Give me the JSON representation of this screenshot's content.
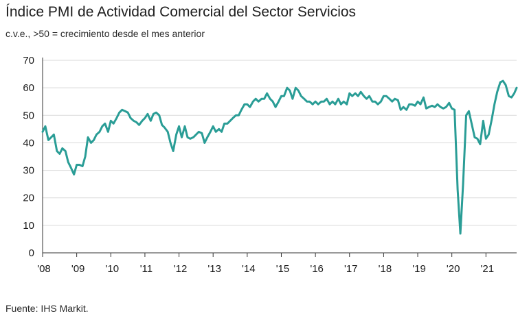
{
  "chart_data": {
    "type": "line",
    "title": "Índice PMI de Actividad Comercial del Sector Servicios",
    "subtitle": "c.v.e., >50 = crecimiento desde el mes anterior",
    "source": "Fuente: IHS Markit.",
    "xlabel": "",
    "ylabel": "",
    "ylim": [
      0,
      70
    ],
    "yticks": [
      0,
      10,
      20,
      30,
      40,
      50,
      60,
      70
    ],
    "xlim": [
      2008.0,
      2021.9
    ],
    "xticks": [
      2008,
      2009,
      2010,
      2011,
      2012,
      2013,
      2014,
      2015,
      2016,
      2017,
      2018,
      2019,
      2020,
      2021
    ],
    "xtick_labels": [
      "'08",
      "'09",
      "'10",
      "'11",
      "'12",
      "'13",
      "'14",
      "'15",
      "'16",
      "'17",
      "'18",
      "'19",
      "'20",
      "'21"
    ],
    "grid": "horizontal",
    "line_color": "#2a9d96",
    "series": [
      {
        "points": [
          [
            2008.0,
            44
          ],
          [
            2008.08,
            46
          ],
          [
            2008.17,
            41
          ],
          [
            2008.25,
            42
          ],
          [
            2008.33,
            43
          ],
          [
            2008.42,
            37
          ],
          [
            2008.5,
            36
          ],
          [
            2008.58,
            38
          ],
          [
            2008.67,
            37
          ],
          [
            2008.75,
            33
          ],
          [
            2008.83,
            31
          ],
          [
            2008.92,
            28.5
          ],
          [
            2009.0,
            32
          ],
          [
            2009.08,
            32
          ],
          [
            2009.17,
            31.5
          ],
          [
            2009.25,
            35
          ],
          [
            2009.33,
            42
          ],
          [
            2009.42,
            40
          ],
          [
            2009.5,
            41
          ],
          [
            2009.58,
            43
          ],
          [
            2009.67,
            44
          ],
          [
            2009.75,
            46
          ],
          [
            2009.83,
            47
          ],
          [
            2009.92,
            44
          ],
          [
            2010.0,
            48
          ],
          [
            2010.08,
            47
          ],
          [
            2010.17,
            49
          ],
          [
            2010.25,
            51
          ],
          [
            2010.33,
            52
          ],
          [
            2010.42,
            51.5
          ],
          [
            2010.5,
            51
          ],
          [
            2010.58,
            49
          ],
          [
            2010.67,
            48
          ],
          [
            2010.75,
            47.5
          ],
          [
            2010.83,
            46.5
          ],
          [
            2010.92,
            48
          ],
          [
            2011.0,
            49
          ],
          [
            2011.08,
            50.5
          ],
          [
            2011.17,
            48
          ],
          [
            2011.25,
            50.5
          ],
          [
            2011.33,
            51
          ],
          [
            2011.42,
            50
          ],
          [
            2011.5,
            46.5
          ],
          [
            2011.58,
            45.5
          ],
          [
            2011.67,
            44
          ],
          [
            2011.75,
            40
          ],
          [
            2011.83,
            37
          ],
          [
            2011.92,
            43
          ],
          [
            2012.0,
            46
          ],
          [
            2012.08,
            42
          ],
          [
            2012.17,
            46
          ],
          [
            2012.25,
            42
          ],
          [
            2012.33,
            41.5
          ],
          [
            2012.42,
            42
          ],
          [
            2012.5,
            43
          ],
          [
            2012.58,
            44
          ],
          [
            2012.67,
            43.5
          ],
          [
            2012.75,
            40
          ],
          [
            2012.83,
            42
          ],
          [
            2012.92,
            44
          ],
          [
            2013.0,
            46
          ],
          [
            2013.08,
            44
          ],
          [
            2013.17,
            45
          ],
          [
            2013.25,
            44
          ],
          [
            2013.33,
            47
          ],
          [
            2013.42,
            47
          ],
          [
            2013.5,
            48
          ],
          [
            2013.58,
            49
          ],
          [
            2013.67,
            50
          ],
          [
            2013.75,
            50
          ],
          [
            2013.83,
            52
          ],
          [
            2013.92,
            54
          ],
          [
            2014.0,
            54
          ],
          [
            2014.08,
            53
          ],
          [
            2014.17,
            55
          ],
          [
            2014.25,
            56
          ],
          [
            2014.33,
            55
          ],
          [
            2014.42,
            56
          ],
          [
            2014.5,
            56
          ],
          [
            2014.58,
            58
          ],
          [
            2014.67,
            56
          ],
          [
            2014.75,
            55
          ],
          [
            2014.83,
            53
          ],
          [
            2014.92,
            55
          ],
          [
            2015.0,
            57
          ],
          [
            2015.08,
            57
          ],
          [
            2015.17,
            60
          ],
          [
            2015.25,
            59
          ],
          [
            2015.33,
            56
          ],
          [
            2015.42,
            60
          ],
          [
            2015.5,
            59
          ],
          [
            2015.58,
            57
          ],
          [
            2015.67,
            56
          ],
          [
            2015.75,
            55
          ],
          [
            2015.83,
            55
          ],
          [
            2015.92,
            54
          ],
          [
            2016.0,
            55
          ],
          [
            2016.08,
            54
          ],
          [
            2016.17,
            55
          ],
          [
            2016.25,
            55
          ],
          [
            2016.33,
            56
          ],
          [
            2016.42,
            54
          ],
          [
            2016.5,
            55
          ],
          [
            2016.58,
            54
          ],
          [
            2016.67,
            56
          ],
          [
            2016.75,
            54
          ],
          [
            2016.83,
            55
          ],
          [
            2016.92,
            54
          ],
          [
            2017.0,
            58
          ],
          [
            2017.08,
            57
          ],
          [
            2017.17,
            58
          ],
          [
            2017.25,
            57
          ],
          [
            2017.33,
            58.5
          ],
          [
            2017.42,
            57
          ],
          [
            2017.5,
            56
          ],
          [
            2017.58,
            57
          ],
          [
            2017.67,
            55
          ],
          [
            2017.75,
            55
          ],
          [
            2017.83,
            54
          ],
          [
            2017.92,
            55
          ],
          [
            2018.0,
            57
          ],
          [
            2018.08,
            57
          ],
          [
            2018.17,
            56
          ],
          [
            2018.25,
            55
          ],
          [
            2018.33,
            56
          ],
          [
            2018.42,
            55.5
          ],
          [
            2018.5,
            52
          ],
          [
            2018.58,
            53
          ],
          [
            2018.67,
            52
          ],
          [
            2018.75,
            54
          ],
          [
            2018.83,
            54
          ],
          [
            2018.92,
            53.5
          ],
          [
            2019.0,
            55
          ],
          [
            2019.08,
            54
          ],
          [
            2019.17,
            56.5
          ],
          [
            2019.25,
            52.5
          ],
          [
            2019.33,
            53
          ],
          [
            2019.42,
            53.5
          ],
          [
            2019.5,
            53
          ],
          [
            2019.58,
            54
          ],
          [
            2019.67,
            53
          ],
          [
            2019.75,
            52.5
          ],
          [
            2019.83,
            53
          ],
          [
            2019.92,
            54.5
          ],
          [
            2020.0,
            52.5
          ],
          [
            2020.08,
            52
          ],
          [
            2020.17,
            23
          ],
          [
            2020.25,
            7
          ],
          [
            2020.33,
            25
          ],
          [
            2020.42,
            50
          ],
          [
            2020.5,
            51.5
          ],
          [
            2020.58,
            47
          ],
          [
            2020.67,
            42
          ],
          [
            2020.75,
            41.5
          ],
          [
            2020.83,
            39.5
          ],
          [
            2020.92,
            48
          ],
          [
            2021.0,
            41.5
          ],
          [
            2021.08,
            43
          ],
          [
            2021.17,
            48.5
          ],
          [
            2021.25,
            54
          ],
          [
            2021.33,
            58.5
          ],
          [
            2021.42,
            62
          ],
          [
            2021.5,
            62.5
          ],
          [
            2021.58,
            61
          ],
          [
            2021.67,
            57
          ],
          [
            2021.75,
            56.5
          ],
          [
            2021.83,
            58
          ],
          [
            2021.9,
            60
          ]
        ]
      }
    ]
  }
}
